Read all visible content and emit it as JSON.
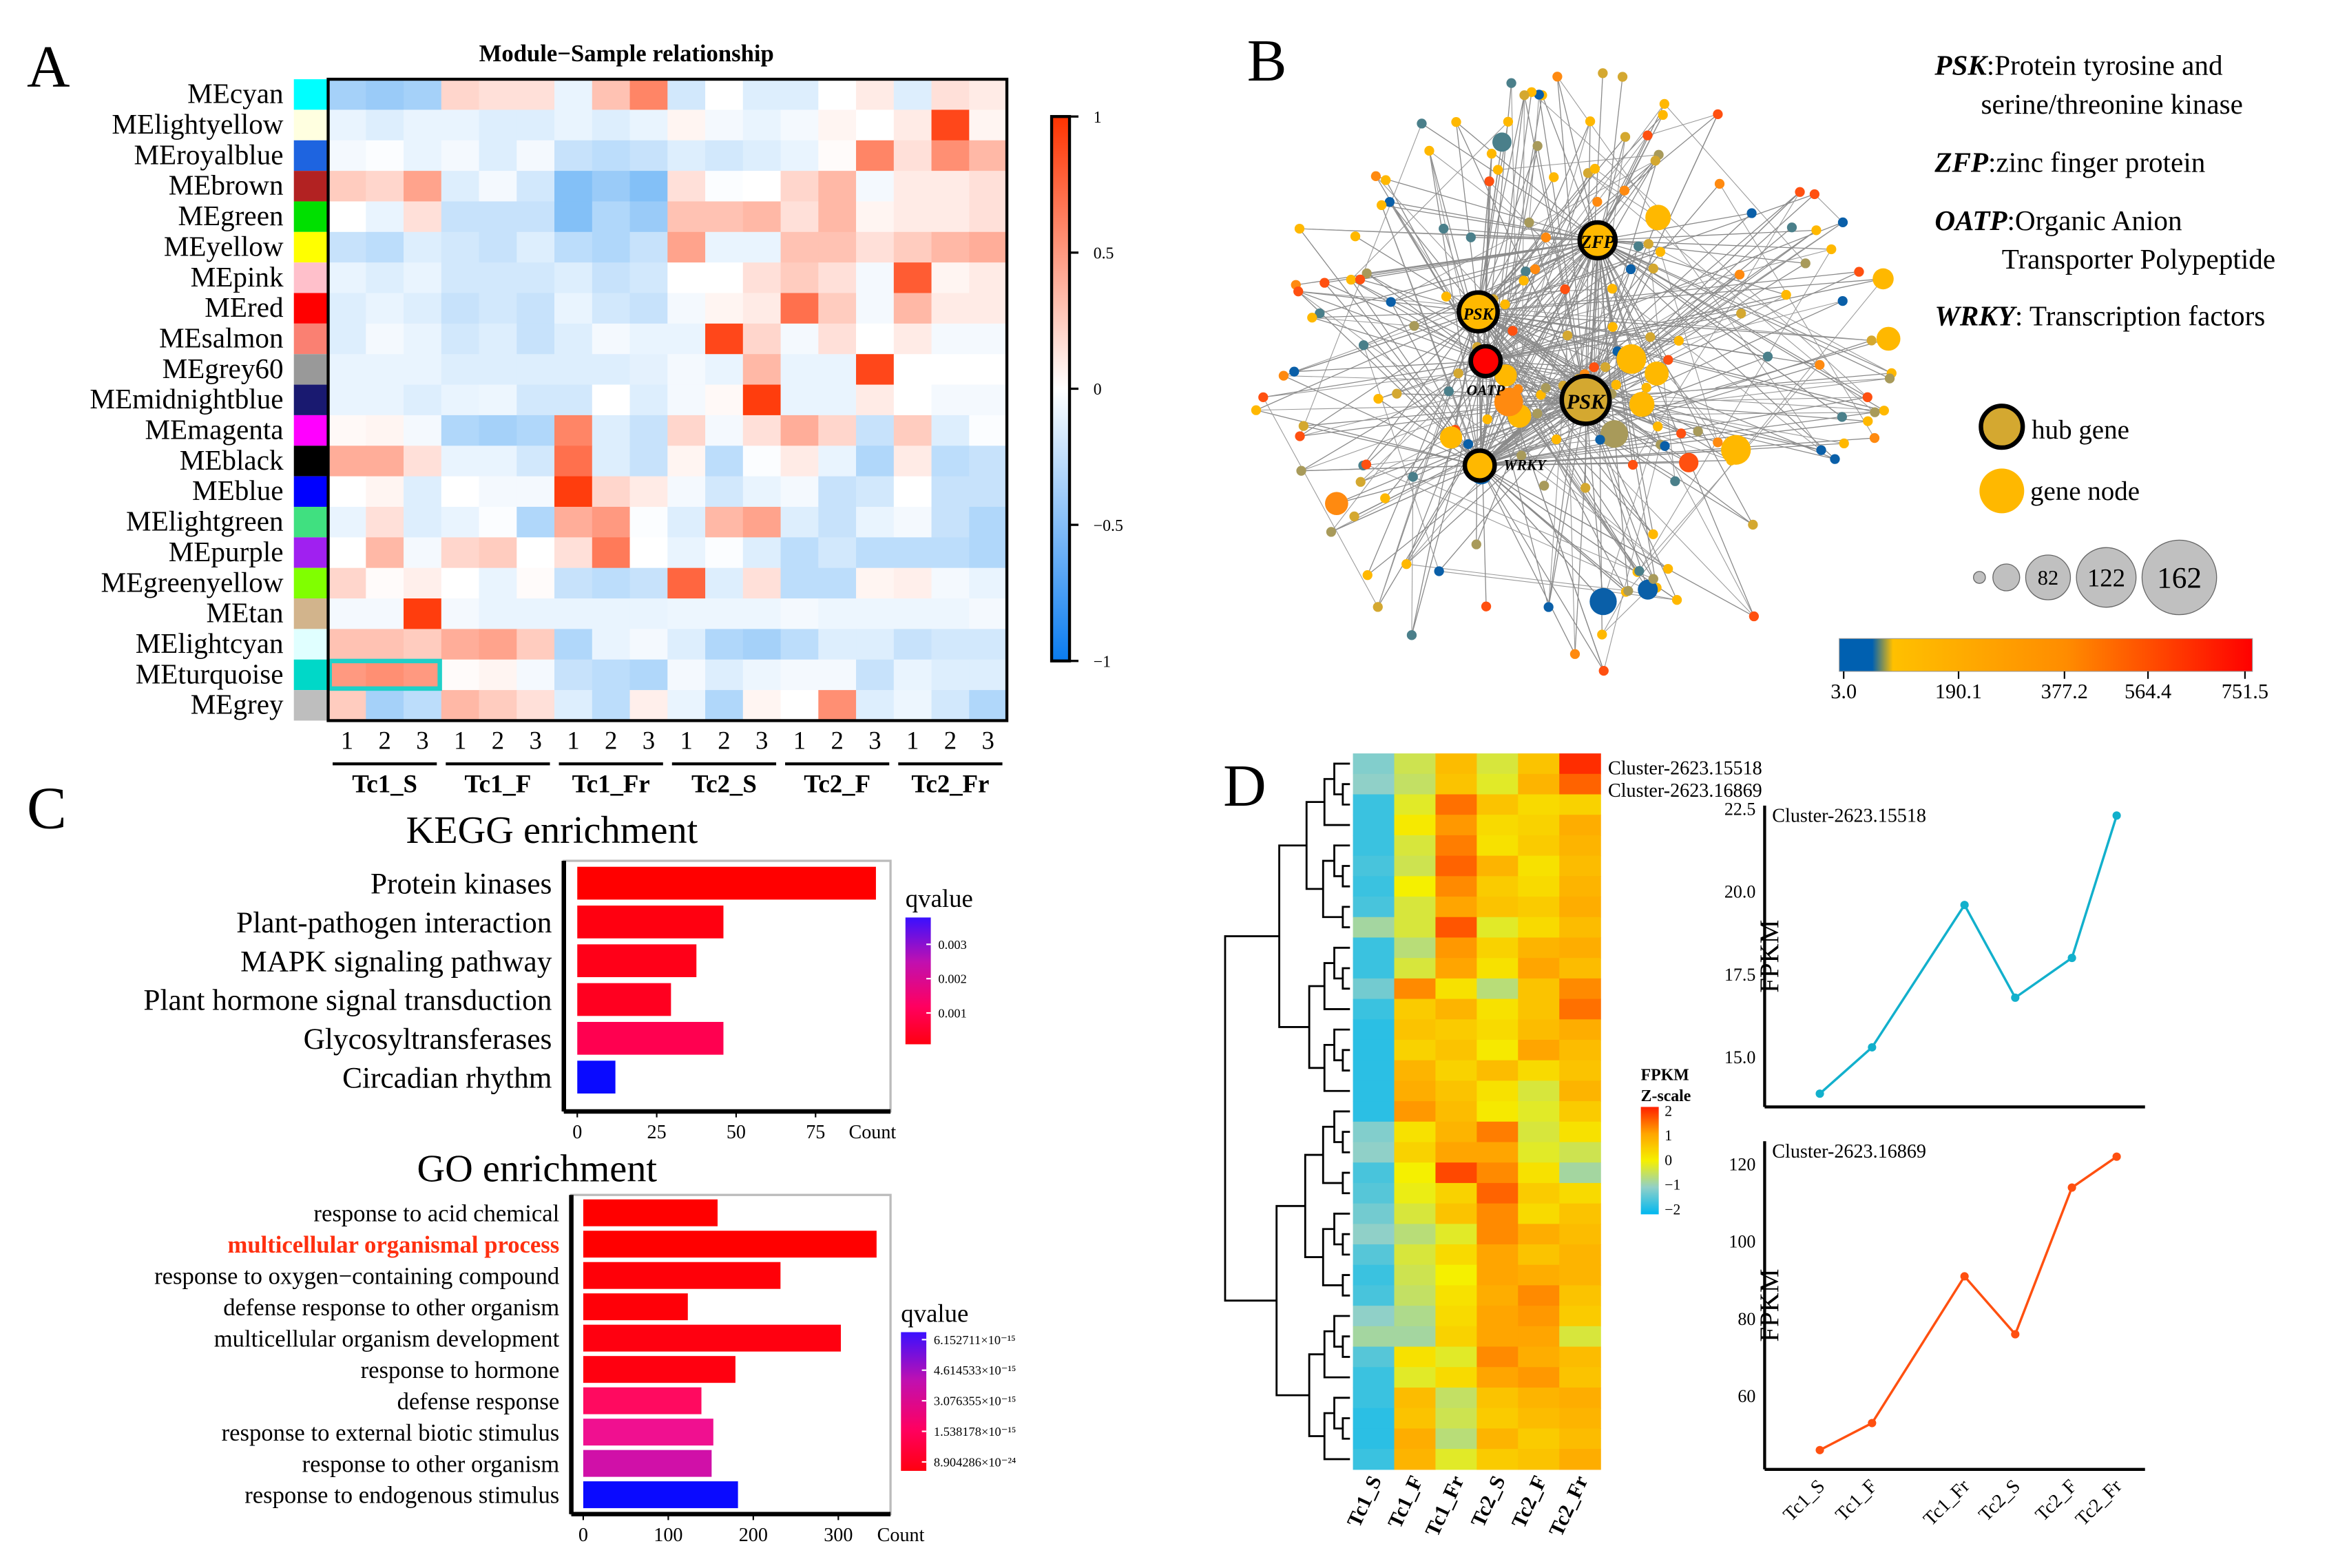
{
  "panel_labels": [
    "A",
    "B",
    "C",
    "D"
  ],
  "chart_data": [
    {
      "type": "heatmap",
      "title": "Module−Sample relationship",
      "rows": [
        "MEcyan",
        "MElightyellow",
        "MEroyalblue",
        "MEbrown",
        "MEgreen",
        "MEyellow",
        "MEpink",
        "MEred",
        "MEsalmon",
        "MEgrey60",
        "MEmidnightblue",
        "MEmagenta",
        "MEblack",
        "MEblue",
        "MElightgreen",
        "MEpurple",
        "MEgreenyellow",
        "MEtan",
        "MElightcyan",
        "MEturquoise",
        "MEgrey"
      ],
      "row_colors": [
        "#00FFFF",
        "#FFFFE0",
        "#1E64E0",
        "#B22222",
        "#00E000",
        "#FFFF00",
        "#FFC0CB",
        "#FF0000",
        "#FA8072",
        "#999999",
        "#191970",
        "#FF00FF",
        "#000000",
        "#0000FF",
        "#40E080",
        "#A020F0",
        "#80FF00",
        "#D2B48C",
        "#E0FFFF",
        "#00D8C8",
        "#BEBEBE"
      ],
      "groups": [
        "Tc1_S",
        "Tc1_F",
        "Tc1_Fr",
        "Tc2_S",
        "Tc2_F",
        "Tc2_Fr"
      ],
      "replicates": [
        "1",
        "2",
        "3"
      ],
      "values": [
        [
          -0.4,
          -0.45,
          -0.4,
          0.2,
          0.15,
          0.15,
          -0.1,
          0.3,
          0.6,
          -0.2,
          0,
          -0.15,
          -0.15,
          0,
          0.1,
          -0.15,
          0.15,
          0.1
        ],
        [
          -0.1,
          -0.15,
          -0.1,
          -0.1,
          -0.15,
          -0.15,
          -0.1,
          -0.15,
          -0.1,
          0.05,
          -0.05,
          -0.1,
          -0.05,
          0.05,
          0,
          0.1,
          0.9,
          0.05
        ],
        [
          -0.05,
          -0.02,
          -0.1,
          -0.05,
          -0.15,
          -0.05,
          -0.25,
          -0.3,
          -0.25,
          -0.15,
          -0.2,
          -0.15,
          -0.1,
          0.02,
          0.6,
          0.15,
          0.55,
          0.35
        ],
        [
          0.25,
          0.2,
          0.45,
          -0.15,
          -0.05,
          -0.2,
          -0.55,
          -0.45,
          -0.55,
          0.15,
          -0.02,
          0,
          0.2,
          0.35,
          -0.05,
          0.1,
          0.1,
          0.15
        ],
        [
          0,
          -0.1,
          0.15,
          -0.25,
          -0.25,
          -0.25,
          -0.55,
          -0.35,
          -0.45,
          0.3,
          0.3,
          0.35,
          0.15,
          0.35,
          0.05,
          0.1,
          0.1,
          0.15
        ],
        [
          -0.25,
          -0.3,
          -0.15,
          -0.2,
          -0.25,
          -0.15,
          -0.3,
          -0.35,
          -0.25,
          0.45,
          -0.1,
          -0.1,
          0.3,
          0.3,
          0.15,
          0.25,
          0.35,
          0.4
        ],
        [
          -0.1,
          -0.15,
          -0.1,
          -0.2,
          -0.2,
          -0.2,
          -0.15,
          -0.25,
          -0.2,
          0,
          0,
          0.15,
          0.25,
          0.15,
          -0.05,
          0.8,
          0.05,
          0.1
        ],
        [
          -0.15,
          -0.1,
          -0.15,
          -0.25,
          -0.2,
          -0.25,
          -0.1,
          -0.2,
          -0.25,
          -0.05,
          0.05,
          0.1,
          0.7,
          0.25,
          -0.05,
          0.35,
          0.1,
          0.1
        ],
        [
          -0.15,
          -0.05,
          -0.1,
          -0.2,
          -0.15,
          -0.25,
          -0.15,
          -0.05,
          -0.1,
          -0.1,
          0.9,
          0.2,
          -0.05,
          0.15,
          0,
          0.1,
          -0.05,
          -0.05
        ],
        [
          -0.1,
          -0.1,
          -0.1,
          -0.15,
          -0.15,
          -0.15,
          -0.15,
          -0.15,
          -0.12,
          -0.05,
          -0.1,
          0.35,
          -0.1,
          -0.1,
          0.9,
          0,
          0,
          0
        ],
        [
          -0.1,
          -0.1,
          -0.15,
          -0.1,
          -0.08,
          -0.2,
          -0.2,
          0,
          -0.15,
          -0.05,
          0.03,
          0.95,
          -0.1,
          -0.1,
          0.1,
          0,
          -0.05,
          -0.05
        ],
        [
          0.03,
          0.05,
          -0.05,
          -0.35,
          -0.4,
          -0.35,
          0.6,
          -0.15,
          -0.25,
          0.2,
          -0.05,
          0.15,
          0.4,
          0.2,
          -0.25,
          0.25,
          -0.15,
          -0.02
        ],
        [
          0.4,
          0.4,
          0.15,
          -0.1,
          -0.1,
          -0.2,
          0.7,
          -0.15,
          -0.25,
          0.05,
          -0.3,
          -0.02,
          0.1,
          -0.1,
          -0.35,
          0.1,
          -0.3,
          -0.25
        ],
        [
          0,
          0.05,
          -0.15,
          0,
          -0.05,
          -0.05,
          0.95,
          0.2,
          0.1,
          -0.05,
          -0.2,
          -0.1,
          -0.05,
          -0.25,
          -0.2,
          0,
          -0.25,
          -0.25
        ],
        [
          -0.1,
          0.15,
          -0.15,
          -0.1,
          -0.02,
          -0.35,
          0.4,
          0.5,
          -0.02,
          -0.15,
          0.35,
          0.45,
          -0.15,
          -0.25,
          -0.1,
          -0.05,
          -0.25,
          -0.35
        ],
        [
          0,
          0.35,
          -0.05,
          0.2,
          0.25,
          0,
          0.15,
          0.65,
          0,
          -0.1,
          -0.02,
          -0.15,
          -0.3,
          -0.2,
          -0.3,
          -0.3,
          -0.3,
          -0.35
        ],
        [
          0.2,
          0.02,
          0.08,
          0,
          -0.1,
          0.02,
          -0.25,
          -0.3,
          -0.25,
          0.75,
          -0.15,
          0.15,
          -0.3,
          -0.3,
          0.05,
          0.08,
          -0.05,
          -0.1
        ],
        [
          -0.05,
          -0.05,
          0.95,
          -0.05,
          -0.1,
          -0.1,
          -0.1,
          -0.1,
          -0.1,
          -0.08,
          -0.08,
          -0.08,
          -0.05,
          -0.08,
          -0.08,
          -0.08,
          -0.08,
          -0.05
        ],
        [
          0.3,
          0.3,
          0.25,
          0.4,
          0.45,
          0.25,
          -0.35,
          -0.1,
          -0.05,
          -0.15,
          -0.35,
          -0.4,
          -0.3,
          -0.15,
          -0.15,
          -0.25,
          -0.2,
          -0.2
        ],
        [
          0.5,
          0.55,
          0.5,
          0.02,
          0.05,
          -0.05,
          -0.25,
          -0.3,
          -0.35,
          -0.05,
          -0.15,
          -0.08,
          -0.05,
          -0.05,
          -0.25,
          -0.1,
          -0.15,
          -0.15
        ],
        [
          0.25,
          -0.4,
          -0.3,
          0.35,
          0.25,
          0.15,
          -0.15,
          -0.3,
          0.08,
          -0.1,
          -0.35,
          0.05,
          0,
          0.55,
          -0.15,
          -0.08,
          -0.2,
          -0.35
        ]
      ],
      "highlight": {
        "row": "MEturquoise",
        "group": "Tc1_S",
        "color": "#20D0C8"
      },
      "colorbar": {
        "range": [
          -1,
          1
        ],
        "ticks": [
          "1",
          "0.5",
          "0",
          "−0.5",
          "−1"
        ],
        "low_color": "#1E8CF0",
        "high_color": "#FF3300"
      }
    },
    {
      "type": "network",
      "hubs": [
        "ZFP",
        "PSK",
        "OATP",
        "PSK",
        "WRKY"
      ],
      "annotations": [
        {
          "term": "PSK",
          "desc": ":Protein tyrosine and",
          "desc2": "serine/threonine kinase"
        },
        {
          "term": "ZFP",
          "desc": ":zinc finger protein",
          "desc2": ""
        },
        {
          "term": "OATP",
          "desc": ":Organic Anion",
          "desc2": "Transporter Polypeptide"
        },
        {
          "term": "WRKY",
          "desc": ": Transcription factors",
          "desc2": ""
        }
      ],
      "legend": {
        "hub": "hub gene",
        "node": "gene node",
        "sizes": [
          "82",
          "122",
          "162"
        ]
      },
      "colorbar": {
        "ticks": [
          "3.0",
          "190.1",
          "377.2",
          "564.4",
          "751.5"
        ],
        "colors": [
          "#0060B0",
          "#FFC000",
          "#FF8C00",
          "#FF0000"
        ]
      }
    },
    {
      "type": "bar",
      "title": "KEGG enrichment",
      "categories": [
        "Protein kinases",
        "Plant-pathogen interaction",
        "MAPK signaling pathway",
        "Plant hormone signal transduction",
        "Glycosyltransferases",
        "Circadian rhythm"
      ],
      "values": [
        94,
        46,
        37.5,
        29.5,
        46,
        12
      ],
      "colors": [
        "#FF0000",
        "#FF0010",
        "#FF0018",
        "#FF0020",
        "#FF0050",
        "#0A0AFF"
      ],
      "xlabel": "Count",
      "xticks": [
        "0",
        "25",
        "50",
        "75"
      ],
      "xlim": [
        0,
        100
      ],
      "legend": {
        "title": "qvalue",
        "ticks": [
          "0.003",
          "0.002",
          "0.001"
        ]
      }
    },
    {
      "type": "bar",
      "title": "GO enrichment",
      "categories": [
        "response to acid chemical",
        "multicellular organismal process",
        "response to oxygen−containing compound",
        "defense response to other organism",
        "multicellular organism development",
        "response to hormone",
        "defense response",
        "response to external biotic stimulus",
        "response to other organism",
        "response to endogenous stimulus"
      ],
      "highlighted_category": "multicellular organismal process",
      "highlight_color": "#FF3010",
      "values": [
        158,
        345,
        232,
        123,
        303,
        179,
        139,
        153,
        151,
        182
      ],
      "colors": [
        "#FF0000",
        "#FF0000",
        "#FF0008",
        "#FF0008",
        "#FF0010",
        "#FF0010",
        "#FF0A60",
        "#F01090",
        "#D010A8",
        "#0A0AFF"
      ],
      "xlabel": "Count",
      "xticks": [
        "0",
        "100",
        "200",
        "300"
      ],
      "xlim": [
        0,
        370
      ],
      "legend": {
        "title": "qvalue",
        "ticks": [
          "6.152711×10⁻¹⁵",
          "4.614533×10⁻¹⁵",
          "3.076355×10⁻¹⁵",
          "1.538178×10⁻¹⁵",
          "8.904286×10⁻²⁴"
        ]
      }
    },
    {
      "type": "heatmap",
      "columns": [
        "Tc1_S",
        "Tc1_F",
        "Tc1_Fr",
        "Tc2_S",
        "Tc2_F",
        "Tc2_Fr"
      ],
      "row_labels_shown": [
        "Cluster-2623.15518",
        "Cluster-2623.16869"
      ],
      "legend": {
        "title": "FPKM",
        "subtitle": "Z-scale",
        "ticks": [
          "2",
          "1",
          "0",
          "−1",
          "−2"
        ]
      },
      "values": [
        [
          -1.1,
          -0.4,
          0.7,
          -0.3,
          0.6,
          1.9
        ],
        [
          -1.0,
          -0.5,
          0.6,
          -0.2,
          0.8,
          1.5
        ],
        [
          -1.6,
          -0.2,
          1.4,
          0.6,
          0.3,
          0.4
        ],
        [
          -1.6,
          0.1,
          1.1,
          0.3,
          0.4,
          0.9
        ],
        [
          -1.6,
          -0.3,
          1.3,
          0.2,
          0.5,
          0.8
        ],
        [
          -1.5,
          -0.4,
          1.5,
          0.8,
          0.2,
          0.7
        ],
        [
          -1.6,
          0.0,
          1.2,
          0.5,
          0.3,
          0.8
        ],
        [
          -1.5,
          -0.3,
          1.0,
          0.6,
          0.5,
          0.9
        ],
        [
          -0.8,
          -0.3,
          1.6,
          -0.2,
          0.3,
          0.7
        ],
        [
          -1.6,
          -0.6,
          1.1,
          0.4,
          0.8,
          0.9
        ],
        [
          -1.6,
          -0.3,
          1.0,
          0.2,
          1.0,
          0.7
        ],
        [
          -1.2,
          1.2,
          0.2,
          -0.6,
          0.6,
          1.2
        ],
        [
          -1.6,
          0.5,
          0.8,
          0.2,
          0.6,
          1.4
        ],
        [
          -1.7,
          0.6,
          0.5,
          0.3,
          0.7,
          0.9
        ],
        [
          -1.7,
          0.4,
          0.6,
          0.1,
          1.0,
          0.7
        ],
        [
          -1.7,
          0.8,
          0.4,
          0.7,
          0.3,
          0.6
        ],
        [
          -1.7,
          0.9,
          0.6,
          0.2,
          -0.3,
          0.8
        ],
        [
          -1.7,
          1.1,
          0.7,
          0.1,
          -0.2,
          0.5
        ],
        [
          -1.1,
          0.2,
          0.8,
          1.3,
          -0.3,
          0.2
        ],
        [
          -1.0,
          0.4,
          1.0,
          1.0,
          -0.2,
          -0.4
        ],
        [
          -1.5,
          0.0,
          1.7,
          1.2,
          0.2,
          -0.8
        ],
        [
          -1.4,
          -0.1,
          0.4,
          1.5,
          0.5,
          0.3
        ],
        [
          -1.2,
          -0.3,
          0.6,
          1.2,
          0.3,
          0.6
        ],
        [
          -1.0,
          -0.6,
          -0.2,
          1.2,
          0.9,
          0.7
        ],
        [
          -1.4,
          -0.3,
          0.3,
          1.0,
          0.6,
          0.8
        ],
        [
          -1.6,
          -0.4,
          0.0,
          1.0,
          0.9,
          0.8
        ],
        [
          -1.5,
          -0.5,
          0.2,
          0.9,
          1.2,
          0.6
        ],
        [
          -1.0,
          -0.7,
          0.3,
          1.0,
          1.1,
          0.5
        ],
        [
          -0.8,
          -0.8,
          0.4,
          1.0,
          1.0,
          -0.3
        ],
        [
          -1.4,
          0.2,
          -0.2,
          1.2,
          0.9,
          0.7
        ],
        [
          -1.6,
          -0.2,
          0.3,
          1.0,
          1.1,
          0.6
        ],
        [
          -1.6,
          0.7,
          -0.5,
          0.6,
          0.8,
          0.9
        ],
        [
          -1.7,
          0.6,
          -0.4,
          0.5,
          0.7,
          0.8
        ],
        [
          -1.7,
          0.9,
          -0.6,
          0.8,
          0.5,
          0.7
        ],
        [
          -1.6,
          0.8,
          -0.2,
          0.5,
          0.6,
          0.9
        ]
      ]
    },
    {
      "type": "line",
      "title": "Cluster-2623.15518",
      "x": [
        "Tc1_S",
        "Tc1_F",
        "Tc1_Fr",
        "Tc2_S",
        "Tc2_F",
        "Tc2_Fr"
      ],
      "values": [
        13.9,
        15.3,
        19.6,
        16.8,
        18.0,
        22.3
      ],
      "ylabel": "FPKM",
      "yticks": [
        "15.0",
        "17.5",
        "20.0",
        "22.5"
      ],
      "ytick_values": [
        15,
        17.5,
        20,
        22.5
      ],
      "ylim": [
        13.5,
        22.6
      ],
      "color": "#12B0CC"
    },
    {
      "type": "line",
      "title": "Cluster-2623.16869",
      "x": [
        "Tc1_S",
        "Tc1_F",
        "Tc1_Fr",
        "Tc2_S",
        "Tc2_F",
        "Tc2_Fr"
      ],
      "values": [
        46,
        53,
        91,
        76,
        114,
        122
      ],
      "ylabel": "FPKM",
      "yticks": [
        "60",
        "80",
        "100",
        "120"
      ],
      "ytick_values": [
        60,
        80,
        100,
        120
      ],
      "ylim": [
        41,
        126
      ],
      "color": "#FF5010"
    }
  ]
}
